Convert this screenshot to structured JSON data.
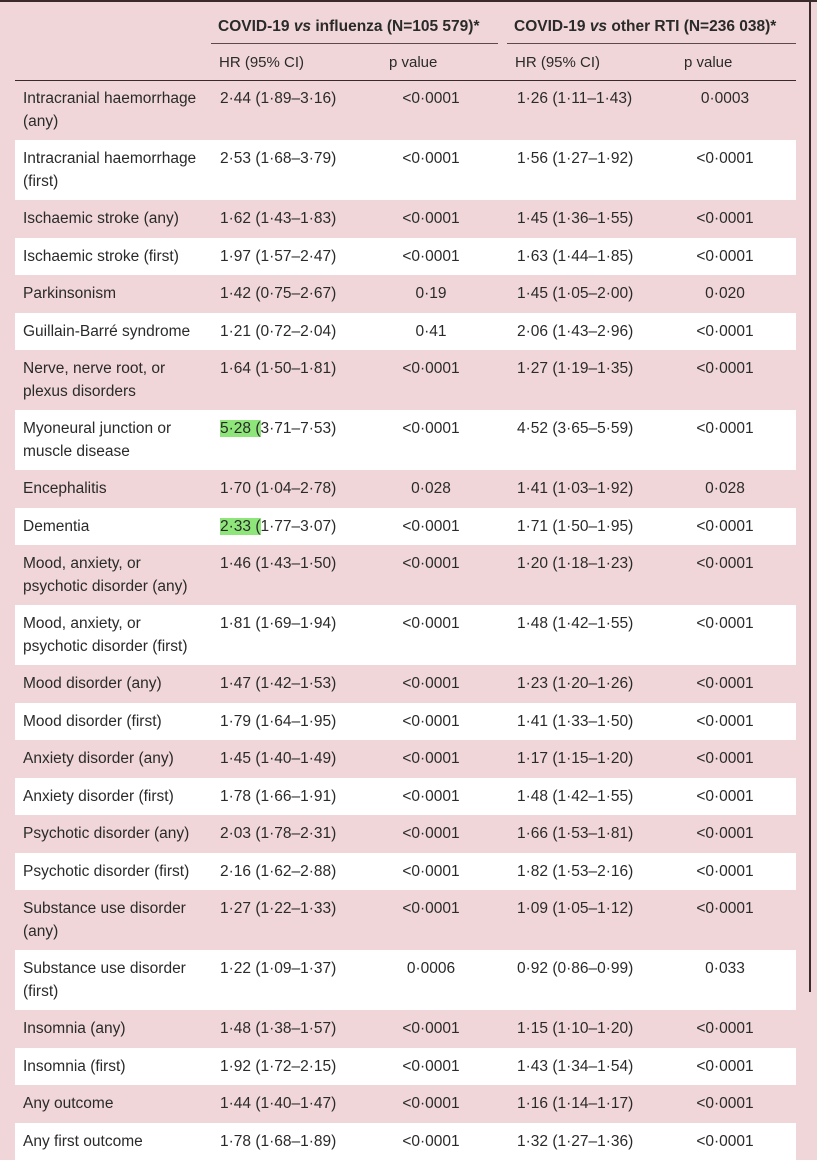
{
  "header": {
    "group1_prefix": "COVID-19 ",
    "group1_vs": "vs",
    "group1_suffix": " influenza (N=105 579)*",
    "group2_prefix": "COVID-19 ",
    "group2_vs": "vs",
    "group2_suffix": " other RTI (N=236 038)*",
    "col_hr": "HR (95% CI)",
    "col_p": "p value"
  },
  "rows": [
    {
      "name": "Intracranial haemorrhage (any)",
      "hr1": "2·44 (1·89–3·16)",
      "p1": "<0·0001",
      "hr2": "1·26 (1·11–1·43)",
      "p2": "0·0003"
    },
    {
      "name": "Intracranial haemorrhage (first)",
      "hr1": "2·53 (1·68–3·79)",
      "p1": "<0·0001",
      "hr2": "1·56 (1·27–1·92)",
      "p2": "<0·0001"
    },
    {
      "name": "Ischaemic stroke (any)",
      "hr1": "1·62 (1·43–1·83)",
      "p1": "<0·0001",
      "hr2": "1·45 (1·36–1·55)",
      "p2": "<0·0001"
    },
    {
      "name": "Ischaemic stroke (first)",
      "hr1": "1·97 (1·57–2·47)",
      "p1": "<0·0001",
      "hr2": "1·63 (1·44–1·85)",
      "p2": "<0·0001"
    },
    {
      "name": "Parkinsonism",
      "hr1": "1·42 (0·75–2·67)",
      "p1": "0·19",
      "hr2": "1·45 (1·05–2·00)",
      "p2": "0·020"
    },
    {
      "name": "Guillain-Barré syndrome",
      "hr1": "1·21 (0·72–2·04)",
      "p1": "0·41",
      "hr2": "2·06 (1·43–2·96)",
      "p2": "<0·0001"
    },
    {
      "name": "Nerve, nerve root, or plexus disorders",
      "hr1": "1·64 (1·50–1·81)",
      "p1": "<0·0001",
      "hr2": "1·27 (1·19–1·35)",
      "p2": "<0·0001"
    },
    {
      "name": "Myoneural junction or muscle disease",
      "hr1_hl": "5·28 (",
      "hr1": "3·71–7·53)",
      "p1": "<0·0001",
      "hr2": "4·52 (3·65–5·59)",
      "p2": "<0·0001"
    },
    {
      "name": "Encephalitis",
      "hr1": "1·70 (1·04–2·78)",
      "p1": "0·028",
      "hr2": "1·41 (1·03–1·92)",
      "p2": "0·028"
    },
    {
      "name": "Dementia",
      "hr1_hl": "2·33 (",
      "hr1": "1·77–3·07)",
      "p1": "<0·0001",
      "hr2": "1·71 (1·50–1·95)",
      "p2": "<0·0001"
    },
    {
      "name": "Mood, anxiety, or psychotic disorder (any)",
      "hr1": "1·46 (1·43–1·50)",
      "p1": "<0·0001",
      "hr2": "1·20 (1·18–1·23)",
      "p2": "<0·0001"
    },
    {
      "name": "Mood, anxiety, or psychotic disorder (first)",
      "hr1": "1·81 (1·69–1·94)",
      "p1": "<0·0001",
      "hr2": "1·48 (1·42–1·55)",
      "p2": "<0·0001"
    },
    {
      "name": "Mood disorder (any)",
      "hr1": "1·47 (1·42–1·53)",
      "p1": "<0·0001",
      "hr2": "1·23 (1·20–1·26)",
      "p2": "<0·0001"
    },
    {
      "name": "Mood disorder (first)",
      "hr1": "1·79 (1·64–1·95)",
      "p1": "<0·0001",
      "hr2": "1·41 (1·33–1·50)",
      "p2": "<0·0001"
    },
    {
      "name": "Anxiety disorder (any)",
      "hr1": "1·45 (1·40–1·49)",
      "p1": "<0·0001",
      "hr2": "1·17 (1·15–1·20)",
      "p2": "<0·0001"
    },
    {
      "name": "Anxiety disorder (first)",
      "hr1": "1·78 (1·66–1·91)",
      "p1": "<0·0001",
      "hr2": "1·48 (1·42–1·55)",
      "p2": "<0·0001"
    },
    {
      "name": "Psychotic disorder (any)",
      "hr1": "2·03 (1·78–2·31)",
      "p1": "<0·0001",
      "hr2": "1·66 (1·53–1·81)",
      "p2": "<0·0001"
    },
    {
      "name": "Psychotic disorder (first)",
      "hr1": "2·16 (1·62–2·88)",
      "p1": "<0·0001",
      "hr2": "1·82 (1·53–2·16)",
      "p2": "<0·0001"
    },
    {
      "name": "Substance use disorder (any)",
      "hr1": "1·27 (1·22–1·33)",
      "p1": "<0·0001",
      "hr2": "1·09 (1·05–1·12)",
      "p2": "<0·0001"
    },
    {
      "name": "Substance use disorder (first)",
      "hr1": "1·22 (1·09–1·37)",
      "p1": "0·0006",
      "hr2": "0·92 (0·86–0·99)",
      "p2": "0·033"
    },
    {
      "name": "Insomnia (any)",
      "hr1": "1·48 (1·38–1·57)",
      "p1": "<0·0001",
      "hr2": "1·15 (1·10–1·20)",
      "p2": "<0·0001"
    },
    {
      "name": "Insomnia (first)",
      "hr1": "1·92 (1·72–2·15)",
      "p1": "<0·0001",
      "hr2": "1·43 (1·34–1·54)",
      "p2": "<0·0001"
    },
    {
      "name": "Any outcome",
      "hr1": "1·44 (1·40–1·47)",
      "p1": "<0·0001",
      "hr2": "1·16 (1·14–1·17)",
      "p2": "<0·0001"
    },
    {
      "name": "Any first outcome",
      "hr1": "1·78 (1·68–1·89)",
      "p1": "<0·0001",
      "hr2": "1·32 (1·27–1·36)",
      "p2": "<0·0001"
    }
  ],
  "colors": {
    "highlight": "#8ee67a",
    "background": "#f0d6d8",
    "alt_row": "#ffffff"
  }
}
